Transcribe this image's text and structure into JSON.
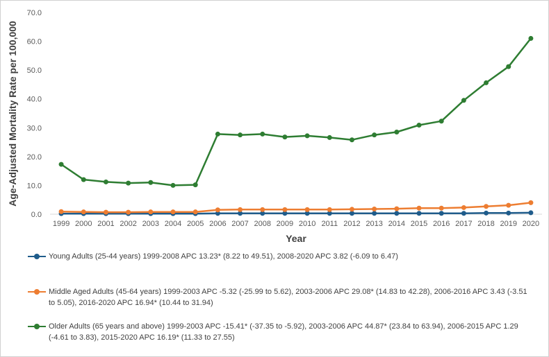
{
  "chart_data": {
    "type": "line",
    "title": "",
    "xlabel": "Year",
    "ylabel": "Age-Adjusted Mortality Rate per 100,000",
    "ylim": [
      0,
      70
    ],
    "yticks": [
      "0.0",
      "10.0",
      "20.0",
      "30.0",
      "40.0",
      "50.0",
      "60.0",
      "70.0"
    ],
    "grid": false,
    "legend_position": "bottom",
    "categories": [
      "1999",
      "2000",
      "2001",
      "2002",
      "2003",
      "2004",
      "2005",
      "2006",
      "2007",
      "2008",
      "2009",
      "2010",
      "2011",
      "2012",
      "2013",
      "2014",
      "2015",
      "2016",
      "2017",
      "2018",
      "2019",
      "2020"
    ],
    "series": [
      {
        "name": "Young Adults (25-44 years) 1999-2008 APC 13.23* (8.22 to 49.51), 2008-2020 APC 3.82 (-6.09 to 6.47)",
        "color": "#1f5c8b",
        "values": [
          0.2,
          0.2,
          0.2,
          0.2,
          0.2,
          0.2,
          0.2,
          0.3,
          0.3,
          0.3,
          0.3,
          0.3,
          0.3,
          0.3,
          0.3,
          0.3,
          0.3,
          0.3,
          0.3,
          0.4,
          0.4,
          0.5
        ]
      },
      {
        "name": "Middle Aged Adults (45-64 years) 1999-2003 APC -5.32 (-25.99 to 5.62), 2003-2006 APC 29.08* (14.83 to 42.28), 2006-2016 APC 3.43 (-3.51 to 5.05), 2016-2020 APC 16.94* (10.44 to 31.94)",
        "color": "#ed7d31",
        "values": [
          0.9,
          0.8,
          0.7,
          0.7,
          0.8,
          0.8,
          0.8,
          1.5,
          1.6,
          1.6,
          1.6,
          1.6,
          1.6,
          1.7,
          1.8,
          1.9,
          2.1,
          2.1,
          2.3,
          2.7,
          3.1,
          4.0
        ]
      },
      {
        "name": "Older Adults (65 years and above) 1999-2003 APC -15.41* (-37.35 to -5.92), 2003-2006 APC 44.87* (23.84 to 63.94), 2006-2015 APC 1.29 (-4.61 to 3.83), 2015-2020 APC 16.19* (11.33 to 27.55)",
        "color": "#2e7d32",
        "values": [
          17.3,
          12.0,
          11.2,
          10.8,
          11.0,
          10.0,
          10.2,
          27.8,
          27.5,
          27.8,
          26.8,
          27.2,
          26.6,
          25.8,
          27.5,
          28.5,
          30.9,
          32.3,
          39.5,
          45.6,
          51.2,
          61.0
        ]
      }
    ]
  }
}
